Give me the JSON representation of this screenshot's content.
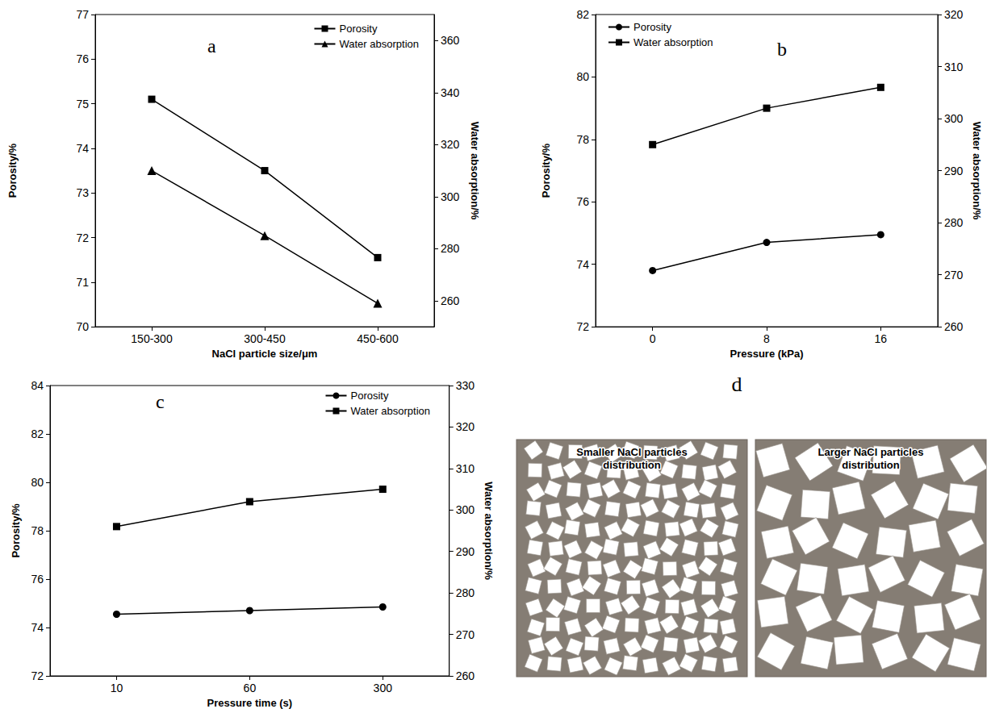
{
  "chart_data": [
    {
      "type": "line",
      "title": "a",
      "categories": [
        "150-300",
        "300-450",
        "450-600"
      ],
      "x_label": "NaCl particle size/μm",
      "y_label": "Porosity/%",
      "y2_label": "Water absorption/%",
      "ylim": [
        70,
        77
      ],
      "yticks": [
        70,
        71,
        72,
        73,
        74,
        75,
        76,
        77
      ],
      "y2lim": [
        250,
        370
      ],
      "y2ticks": [
        260,
        280,
        300,
        320,
        340,
        360
      ],
      "grid": false,
      "legend": "upper right",
      "series": [
        {
          "name": "Porosity",
          "color": "#000000",
          "marker": "square",
          "values": [
            75.1,
            73.5,
            71.55
          ]
        },
        {
          "name": "Water absorption",
          "color": "#000000",
          "marker": "triangle",
          "axis": "y2",
          "values": [
            310,
            285,
            259
          ]
        }
      ]
    },
    {
      "type": "line",
      "title": "b",
      "categories": [
        "0",
        "8",
        "16"
      ],
      "x_label": "Pressure (kPa)",
      "y_label": "Porosity/%",
      "y2_label": "Water absorption/%",
      "ylim": [
        72,
        82
      ],
      "yticks": [
        72,
        74,
        76,
        78,
        80,
        82
      ],
      "y2lim": [
        260,
        320
      ],
      "y2ticks": [
        260,
        270,
        280,
        290,
        300,
        310,
        320
      ],
      "grid": false,
      "legend": "upper left",
      "series": [
        {
          "name": "Porosity",
          "color": "#000000",
          "marker": "circle",
          "values": [
            73.8,
            74.7,
            74.95
          ]
        },
        {
          "name": "Water absorption",
          "color": "#000000",
          "marker": "square",
          "axis": "y2",
          "values": [
            295,
            302,
            306
          ]
        }
      ]
    },
    {
      "type": "line",
      "title": "c",
      "categories": [
        "10",
        "60",
        "300"
      ],
      "x_label": "Pressure time (s)",
      "y_label": "Porosity/%",
      "y2_label": "Water absorption/%",
      "ylim": [
        72,
        84
      ],
      "yticks": [
        72,
        74,
        76,
        78,
        80,
        82,
        84
      ],
      "y2lim": [
        260,
        330
      ],
      "y2ticks": [
        260,
        270,
        280,
        290,
        300,
        310,
        320,
        330
      ],
      "grid": false,
      "legend": "upper right",
      "series": [
        {
          "name": "Porosity",
          "color": "#000000",
          "marker": "circle",
          "values": [
            74.55,
            74.7,
            74.85
          ]
        },
        {
          "name": "Water absorption",
          "color": "#000000",
          "marker": "square",
          "axis": "y2",
          "values": [
            296,
            302,
            305
          ]
        }
      ]
    }
  ],
  "diagram": {
    "label": "d",
    "boxes": [
      "Smaller NaCl particles distribution",
      "Larger NaCl particles distribution"
    ]
  }
}
